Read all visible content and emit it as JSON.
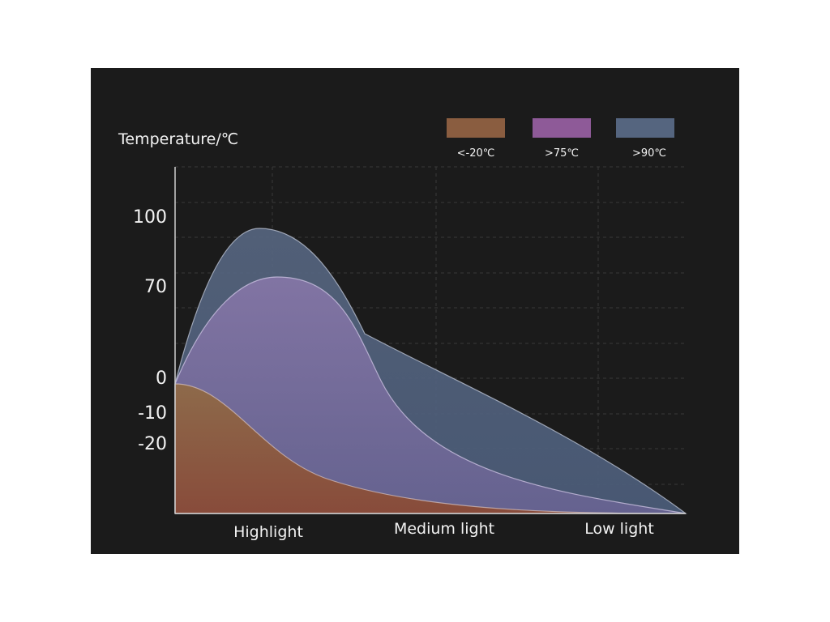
{
  "chart_data": {
    "type": "area",
    "ylabel": "Temperature/℃",
    "y_ticks": [
      "100",
      "70",
      "0",
      "-10",
      "-20"
    ],
    "categories": [
      "Highlight",
      "Medium light",
      "Low light"
    ],
    "legend_position": "top-right",
    "grid": true,
    "series": [
      {
        "name": ">90℃",
        "color": "#4f5f7e",
        "peak_value": 95,
        "peak_at": "Highlight"
      },
      {
        "name": ">75℃",
        "color": "#7f5a92",
        "peak_value": 82,
        "peak_at": "Highlight"
      },
      {
        "name": "<-20℃",
        "color": "#8a5a3e",
        "peak_value": -5,
        "peak_at": "start"
      }
    ],
    "legend": [
      {
        "label": "<-20℃",
        "color": "#8a5a3e"
      },
      {
        "label": ">75℃",
        "color": "#8e5a98"
      },
      {
        "label": ">90℃",
        "color": "#55657f"
      }
    ]
  }
}
